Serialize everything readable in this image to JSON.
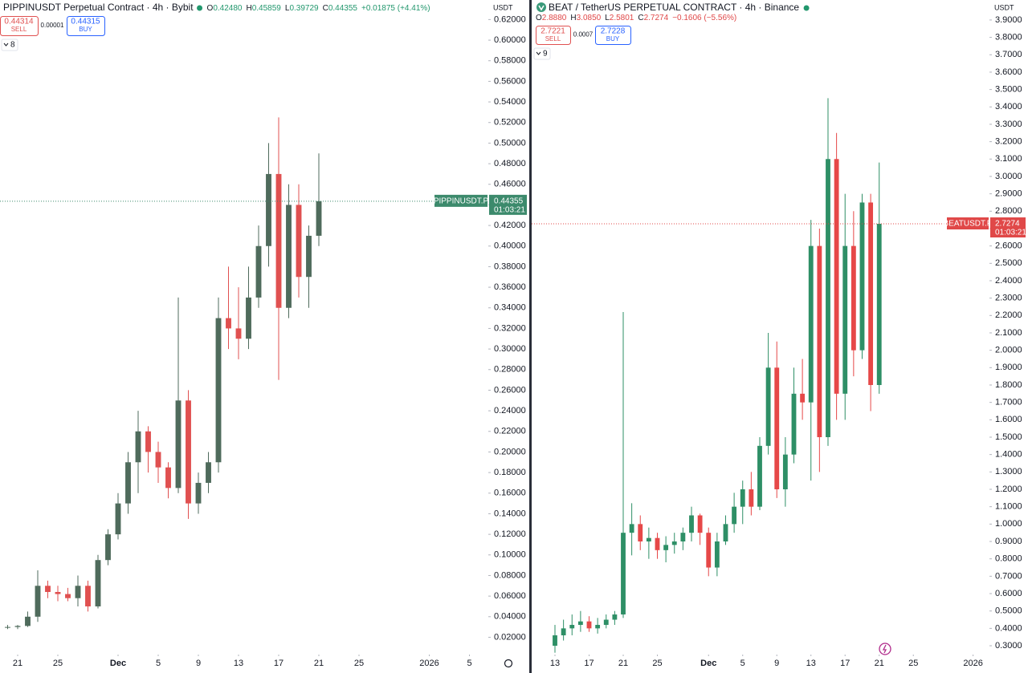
{
  "chart_data": [
    {
      "type": "candlestick",
      "title": "PIPPINUSDT Perpetual Contract · 4h · Bybit",
      "quote_currency": "USDT",
      "ohlc": [
        {
          "label": "O",
          "value": "0.42480"
        },
        {
          "label": "H",
          "value": "0.45859"
        },
        {
          "label": "L",
          "value": "0.39729"
        },
        {
          "label": "C",
          "value": "0.44355"
        }
      ],
      "change": "+0.01875 (+4.41%)",
      "sell": {
        "price": "0.44314",
        "label": "SELL"
      },
      "spread": "0.00001",
      "buy": {
        "price": "0.44315",
        "label": "BUY"
      },
      "indicators": "8",
      "symbol_label": "PIPPINUSDT.P",
      "last_price": "0.44355",
      "countdown": "01:03:21",
      "up_color": "#4f6b5c",
      "down_color": "#e05050",
      "label_color": "#3c8a6c",
      "ohlc_color": "#22976d",
      "xlim": [
        -0.76,
        47.88
      ],
      "xticks": [
        {
          "value": 1,
          "label": "21"
        },
        {
          "value": 5,
          "label": "25"
        },
        {
          "value": 11,
          "label": "Dec"
        },
        {
          "value": 15,
          "label": "5"
        },
        {
          "value": 19,
          "label": "9"
        },
        {
          "value": 23,
          "label": "13"
        },
        {
          "value": 27,
          "label": "17"
        },
        {
          "value": 31,
          "label": "21"
        },
        {
          "value": 35,
          "label": "25"
        },
        {
          "value": 42,
          "label": "2026"
        },
        {
          "value": 46,
          "label": "5"
        }
      ],
      "ylim": [
        0.004,
        0.639
      ],
      "yticks": [
        {
          "value": 0.02,
          "label": "0.02000"
        },
        {
          "value": 0.04,
          "label": "0.04000"
        },
        {
          "value": 0.06,
          "label": "0.06000"
        },
        {
          "value": 0.08,
          "label": "0.08000"
        },
        {
          "value": 0.1,
          "label": "0.10000"
        },
        {
          "value": 0.12,
          "label": "0.12000"
        },
        {
          "value": 0.14,
          "label": "0.14000"
        },
        {
          "value": 0.16,
          "label": "0.16000"
        },
        {
          "value": 0.18,
          "label": "0.18000"
        },
        {
          "value": 0.2,
          "label": "0.20000"
        },
        {
          "value": 0.22,
          "label": "0.22000"
        },
        {
          "value": 0.24,
          "label": "0.24000"
        },
        {
          "value": 0.26,
          "label": "0.26000"
        },
        {
          "value": 0.28,
          "label": "0.28000"
        },
        {
          "value": 0.3,
          "label": "0.30000"
        },
        {
          "value": 0.32,
          "label": "0.32000"
        },
        {
          "value": 0.34,
          "label": "0.34000"
        },
        {
          "value": 0.36,
          "label": "0.36000"
        },
        {
          "value": 0.38,
          "label": "0.38000"
        },
        {
          "value": 0.4,
          "label": "0.40000"
        },
        {
          "value": 0.42,
          "label": "0.42000"
        },
        {
          "value": 0.44,
          "label": "0.44000"
        },
        {
          "value": 0.46,
          "label": "0.46000"
        },
        {
          "value": 0.48,
          "label": "0.48000"
        },
        {
          "value": 0.5,
          "label": "0.50000"
        },
        {
          "value": 0.52,
          "label": "0.52000"
        },
        {
          "value": 0.54,
          "label": "0.54000"
        },
        {
          "value": 0.56,
          "label": "0.56000"
        },
        {
          "value": 0.58,
          "label": "0.58000"
        },
        {
          "value": 0.6,
          "label": "0.60000"
        },
        {
          "value": 0.62,
          "label": "0.62000"
        }
      ],
      "open": [
        0.03,
        0.03,
        0.031,
        0.04,
        0.07,
        0.064,
        0.062,
        0.058,
        0.07,
        0.05,
        0.095,
        0.12,
        0.15,
        0.19,
        0.22,
        0.2,
        0.185,
        0.165,
        0.25,
        0.15,
        0.17,
        0.19,
        0.33,
        0.32,
        0.31,
        0.35,
        0.4,
        0.47,
        0.34,
        0.44,
        0.37,
        0.41
      ],
      "high": [
        0.032,
        0.032,
        0.045,
        0.085,
        0.075,
        0.07,
        0.068,
        0.08,
        0.075,
        0.1,
        0.125,
        0.16,
        0.2,
        0.24,
        0.225,
        0.21,
        0.19,
        0.35,
        0.26,
        0.18,
        0.2,
        0.35,
        0.38,
        0.36,
        0.38,
        0.42,
        0.5,
        0.525,
        0.46,
        0.46,
        0.42,
        0.49
      ],
      "low": [
        0.028,
        0.028,
        0.03,
        0.035,
        0.058,
        0.055,
        0.055,
        0.05,
        0.045,
        0.048,
        0.09,
        0.115,
        0.14,
        0.16,
        0.18,
        0.17,
        0.155,
        0.16,
        0.135,
        0.14,
        0.16,
        0.18,
        0.3,
        0.29,
        0.3,
        0.34,
        0.38,
        0.27,
        0.33,
        0.35,
        0.34,
        0.4
      ],
      "close": [
        0.03,
        0.031,
        0.04,
        0.07,
        0.064,
        0.062,
        0.058,
        0.07,
        0.05,
        0.095,
        0.12,
        0.15,
        0.19,
        0.22,
        0.2,
        0.185,
        0.165,
        0.25,
        0.15,
        0.17,
        0.19,
        0.33,
        0.32,
        0.31,
        0.35,
        0.4,
        0.47,
        0.34,
        0.44,
        0.37,
        0.41,
        0.44355
      ]
    },
    {
      "type": "candlestick",
      "title": "BEAT / TetherUS PERPETUAL CONTRACT · 4h · Binance",
      "quote_currency": "USDT",
      "ohlc": [
        {
          "label": "O",
          "value": "2.8880"
        },
        {
          "label": "H",
          "value": "3.0850"
        },
        {
          "label": "L",
          "value": "2.5801"
        },
        {
          "label": "C",
          "value": "2.7274"
        }
      ],
      "change": "−0.1606 (−5.56%)",
      "sell": {
        "price": "2.7221",
        "label": "SELL"
      },
      "spread": "0.0007",
      "buy": {
        "price": "2.7228",
        "label": "BUY"
      },
      "indicators": "9",
      "symbol_label": "BEATUSDT.P",
      "last_price": "2.7274",
      "countdown": "01:03:21",
      "up_color": "#2e8f66",
      "down_color": "#e64848",
      "label_color": "#e04848",
      "ohlc_color": "#e04848",
      "xlim": [
        -2.73,
        50.92
      ],
      "xticks": [
        {
          "value": 0,
          "label": "13"
        },
        {
          "value": 4,
          "label": "17"
        },
        {
          "value": 8,
          "label": "21"
        },
        {
          "value": 12,
          "label": "25"
        },
        {
          "value": 18,
          "label": "Dec"
        },
        {
          "value": 22,
          "label": "5"
        },
        {
          "value": 26,
          "label": "9"
        },
        {
          "value": 30,
          "label": "13"
        },
        {
          "value": 34,
          "label": "17"
        },
        {
          "value": 38,
          "label": "21"
        },
        {
          "value": 42,
          "label": "25"
        },
        {
          "value": 49,
          "label": "2026"
        }
      ],
      "ylim": [
        0.254,
        4.015
      ],
      "yticks": [
        {
          "value": 0.3,
          "label": "0.3000"
        },
        {
          "value": 0.4,
          "label": "0.4000"
        },
        {
          "value": 0.5,
          "label": "0.5000"
        },
        {
          "value": 0.6,
          "label": "0.6000"
        },
        {
          "value": 0.7,
          "label": "0.7000"
        },
        {
          "value": 0.8,
          "label": "0.8000"
        },
        {
          "value": 0.9,
          "label": "0.9000"
        },
        {
          "value": 1.0,
          "label": "1.0000"
        },
        {
          "value": 1.1,
          "label": "1.1000"
        },
        {
          "value": 1.2,
          "label": "1.2000"
        },
        {
          "value": 1.3,
          "label": "1.3000"
        },
        {
          "value": 1.4,
          "label": "1.4000"
        },
        {
          "value": 1.5,
          "label": "1.5000"
        },
        {
          "value": 1.6,
          "label": "1.6000"
        },
        {
          "value": 1.7,
          "label": "1.7000"
        },
        {
          "value": 1.8,
          "label": "1.8000"
        },
        {
          "value": 1.9,
          "label": "1.9000"
        },
        {
          "value": 2.0,
          "label": "2.0000"
        },
        {
          "value": 2.1,
          "label": "2.1000"
        },
        {
          "value": 2.2,
          "label": "2.2000"
        },
        {
          "value": 2.3,
          "label": "2.3000"
        },
        {
          "value": 2.4,
          "label": "2.4000"
        },
        {
          "value": 2.5,
          "label": "2.5000"
        },
        {
          "value": 2.6,
          "label": "2.6000"
        },
        {
          "value": 2.7,
          "label": "2.7000"
        },
        {
          "value": 2.8,
          "label": "2.8000"
        },
        {
          "value": 2.9,
          "label": "2.9000"
        },
        {
          "value": 3.0,
          "label": "3.0000"
        },
        {
          "value": 3.1,
          "label": "3.1000"
        },
        {
          "value": 3.2,
          "label": "3.2000"
        },
        {
          "value": 3.3,
          "label": "3.3000"
        },
        {
          "value": 3.4,
          "label": "3.4000"
        },
        {
          "value": 3.5,
          "label": "3.5000"
        },
        {
          "value": 3.6,
          "label": "3.6000"
        },
        {
          "value": 3.7,
          "label": "3.7000"
        },
        {
          "value": 3.8,
          "label": "3.8000"
        },
        {
          "value": 3.9,
          "label": "3.9000"
        }
      ],
      "open": [
        0.3,
        0.36,
        0.4,
        0.42,
        0.44,
        0.4,
        0.42,
        0.45,
        0.48,
        0.95,
        1.0,
        0.9,
        0.92,
        0.85,
        0.88,
        0.9,
        0.95,
        1.05,
        0.95,
        0.75,
        0.9,
        1.0,
        1.1,
        1.2,
        1.1,
        1.45,
        1.9,
        1.2,
        1.4,
        1.75,
        1.7,
        2.6,
        1.5,
        3.1,
        1.75,
        2.6,
        2.0,
        2.85,
        1.8
      ],
      "high": [
        0.42,
        0.45,
        0.48,
        0.5,
        0.47,
        0.46,
        0.48,
        0.5,
        2.22,
        1.12,
        1.05,
        0.98,
        0.95,
        0.93,
        0.95,
        0.98,
        1.1,
        1.06,
        0.98,
        0.95,
        1.05,
        1.18,
        1.25,
        1.3,
        1.5,
        2.1,
        2.05,
        1.5,
        1.9,
        1.95,
        2.75,
        2.7,
        3.45,
        3.25,
        2.9,
        2.8,
        2.9,
        2.9,
        3.08
      ],
      "low": [
        0.26,
        0.33,
        0.36,
        0.38,
        0.38,
        0.37,
        0.4,
        0.42,
        0.46,
        0.82,
        0.85,
        0.8,
        0.8,
        0.78,
        0.83,
        0.85,
        0.9,
        0.88,
        0.7,
        0.7,
        0.88,
        0.95,
        1.0,
        1.05,
        1.08,
        1.4,
        1.15,
        1.1,
        1.35,
        1.6,
        1.25,
        1.3,
        1.45,
        1.6,
        1.6,
        1.85,
        1.95,
        1.65,
        1.75
      ],
      "close": [
        0.36,
        0.4,
        0.42,
        0.44,
        0.4,
        0.42,
        0.45,
        0.48,
        0.95,
        1.0,
        0.9,
        0.92,
        0.85,
        0.88,
        0.9,
        0.95,
        1.05,
        0.95,
        0.75,
        0.9,
        1.0,
        1.1,
        1.2,
        1.1,
        1.45,
        1.9,
        1.2,
        1.4,
        1.75,
        1.7,
        2.6,
        1.5,
        3.1,
        1.75,
        2.6,
        2.0,
        2.85,
        1.8,
        2.7274
      ]
    }
  ]
}
